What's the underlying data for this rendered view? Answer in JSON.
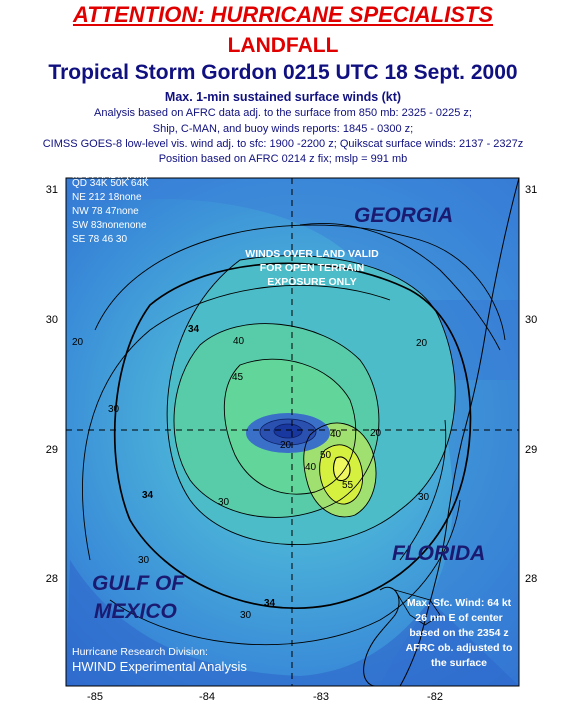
{
  "header": {
    "attention": "ATTENTION: HURRICANE SPECIALISTS",
    "status": "LANDFALL",
    "title": "Tropical Storm Gordon 0215 UTC 18 Sept. 2000",
    "subtitle": "Max. 1-min sustained surface winds (kt)",
    "notes": [
      "Analysis based on AFRC data adj. to the surface from 850 mb: 2325 - 0225 z;",
      "Ship, C-MAN, and buoy winds reports: 1845 - 0300 z;",
      "CIMSS GOES-8 low-level vis. wind adj. to sfc: 1900 -2200 z; Quikscat surface winds: 2137 - 2327z",
      "Position based on AFRC 0214 z fix; mslp = 991 mb"
    ]
  },
  "map": {
    "regions": {
      "georgia": "GEORGIA",
      "florida": "FLORIDA",
      "gulf_line1": "GULF OF",
      "gulf_line2": "MEXICO"
    },
    "land_note": [
      "WINDS OVER LAND VALID",
      "FOR OPEN TERRAIN",
      "EXPOSURE ONLY"
    ],
    "wind_radii": {
      "title": "MAX RADII (NM)",
      "header": "QD 34K 50K 64K",
      "rows": [
        "NE 212  18none",
        "NW  78  47none",
        "SW  83nonenone",
        "SE  78  46  30"
      ]
    },
    "max_wind_note": [
      "Max. Sfc. Wind: 64 kt",
      "26 nm E of center",
      "based on the 2354 z",
      "AFRC ob. adjusted to",
      "the surface"
    ],
    "credit": {
      "line1": "Hurricane Research Division:",
      "line2": "HWIND Experimental Analysis"
    },
    "axes": {
      "lat_ticks": [
        "31",
        "30",
        "29",
        "28"
      ],
      "lon_ticks": [
        "-85",
        "-84",
        "-83",
        "-82"
      ]
    },
    "contour_labels": [
      "34",
      "40",
      "45",
      "30",
      "20",
      "20",
      "30",
      "40",
      "30",
      "34",
      "30",
      "34",
      "30",
      "40",
      "55",
      "50",
      "20",
      "20"
    ],
    "colors": {
      "ocean_outer": "#3a8cd8",
      "ocean_mid": "#4ab4d8",
      "core_green": "#60d09a",
      "max_yellow": "#d8f040",
      "eye": "#1838a0",
      "land": "#3070d0"
    }
  }
}
